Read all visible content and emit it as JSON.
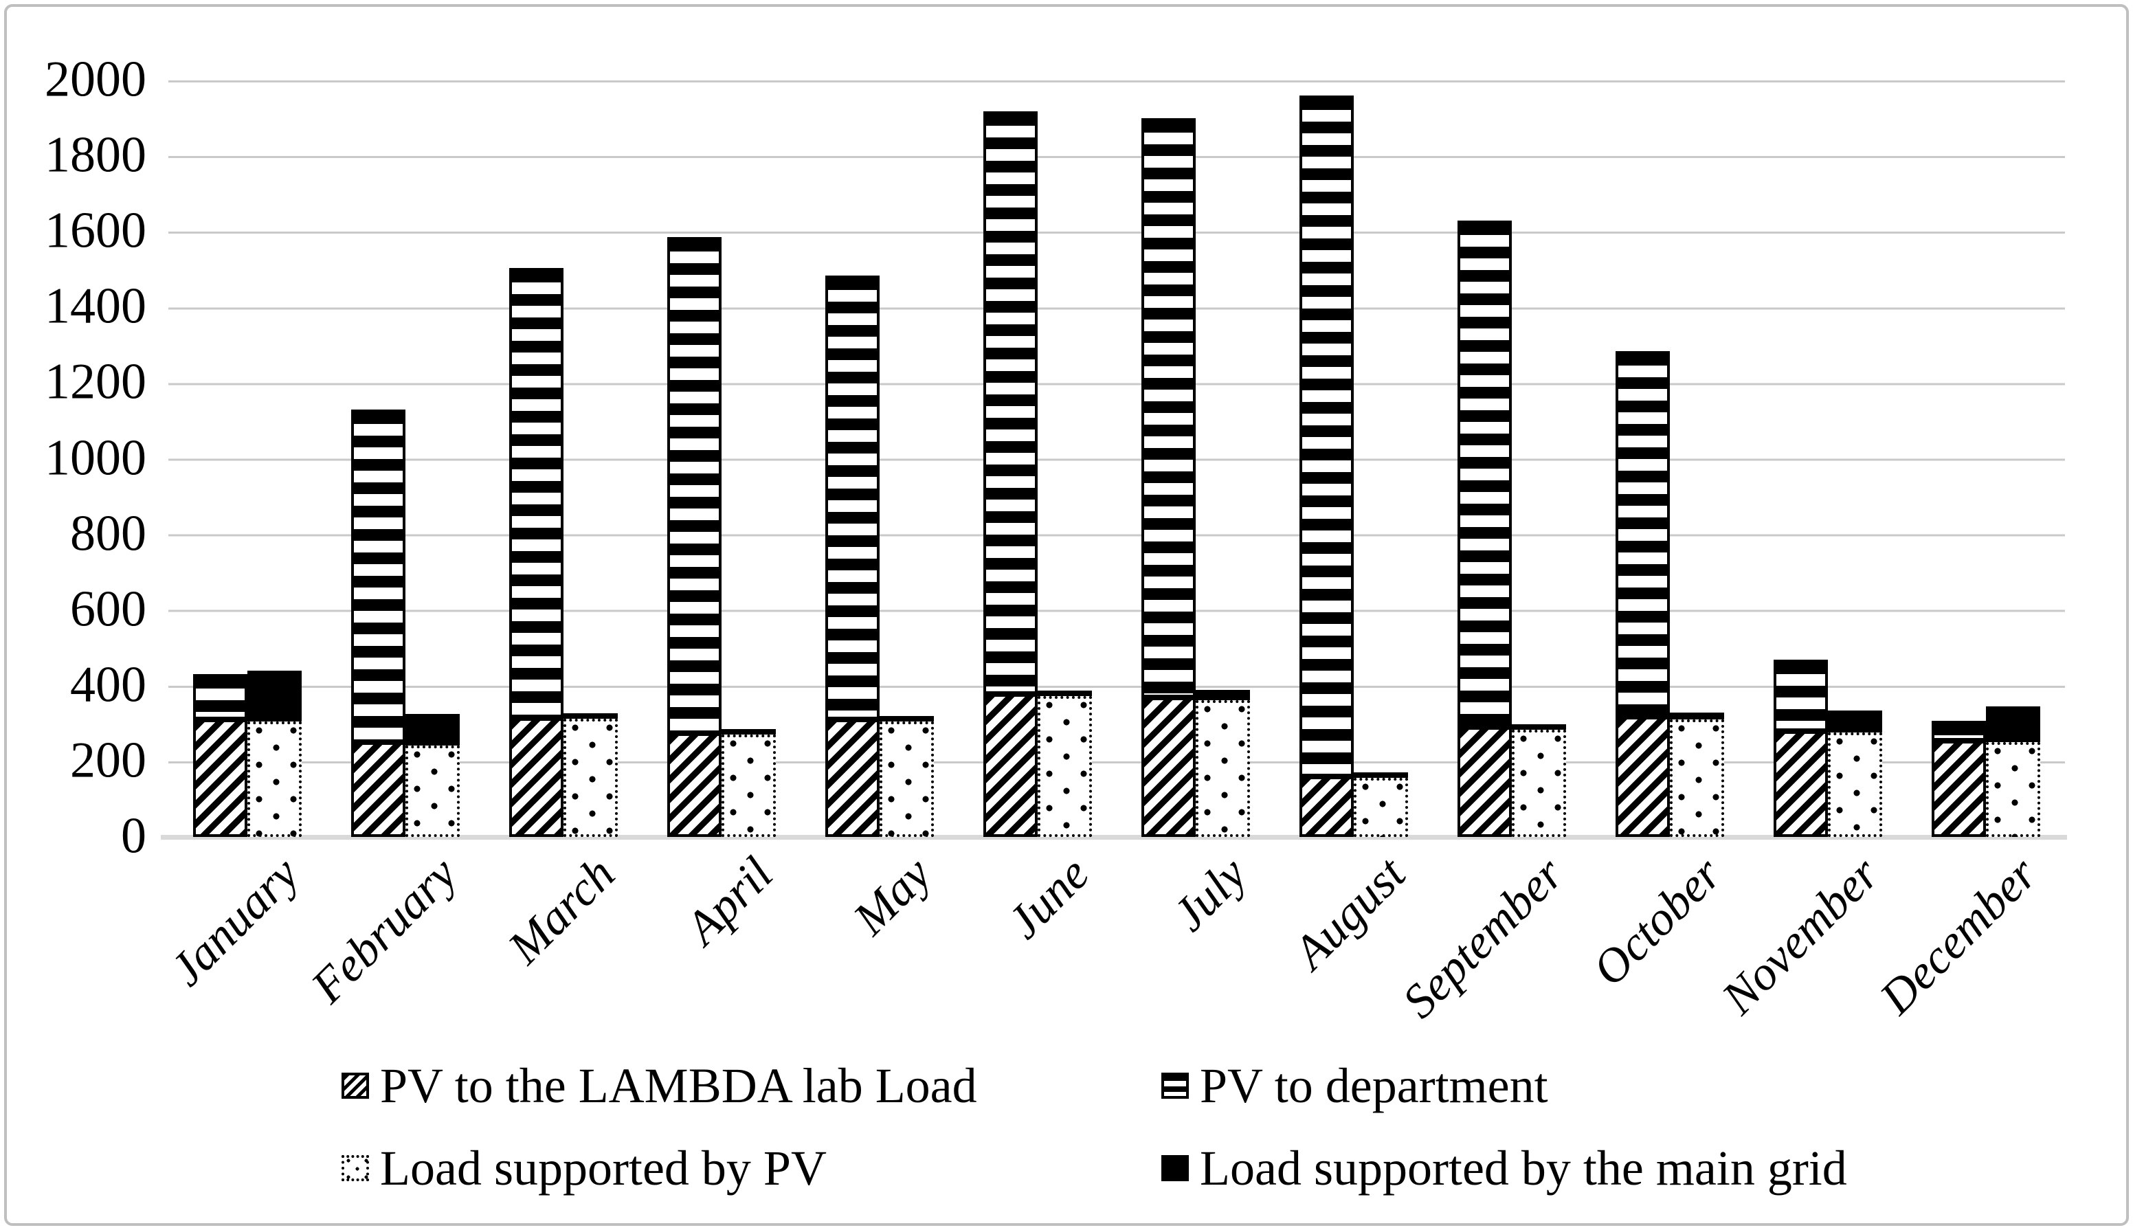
{
  "figure": {
    "background": "#ffffff",
    "border_color": "#bfbfbf",
    "gridline_color": "#c9c9c9",
    "axis_line_color": "#d9d9d9",
    "ink_color": "#000000"
  },
  "legend": {
    "position": "bottom",
    "items": [
      {
        "label": "PV to the LAMBDA lab Load",
        "pattern": "diagonal-hatch"
      },
      {
        "label": "PV to department",
        "pattern": "horizontal-stripes"
      },
      {
        "label": "Load supported by PV",
        "pattern": "dots"
      },
      {
        "label": "Load supported by the main grid",
        "pattern": "solid-black"
      }
    ]
  },
  "chart_data": {
    "type": "bar",
    "subtype": "two-stacked-bars-per-category",
    "title": "",
    "xlabel": "",
    "ylabel": "",
    "ylim": [
      0,
      2000
    ],
    "ytick": 200,
    "grid": "horizontal",
    "legend_position": "bottom",
    "categories": [
      "January",
      "February",
      "March",
      "April",
      "May",
      "June",
      "July",
      "August",
      "September",
      "October",
      "November",
      "December"
    ],
    "series": [
      {
        "name": "PV to the LAMBDA lab Load",
        "pattern": "diagonal-hatch",
        "stack": 0,
        "values": [
          310,
          250,
          315,
          275,
          310,
          378,
          368,
          160,
          290,
          318,
          280,
          255
        ]
      },
      {
        "name": "PV to department",
        "pattern": "horizontal-stripes",
        "stack": 0,
        "values": [
          120,
          880,
          1190,
          1310,
          1175,
          1540,
          1532,
          1800,
          1340,
          967,
          188,
          52
        ]
      },
      {
        "name": "Load supported by PV",
        "pattern": "dots",
        "stack": 1,
        "values": [
          305,
          242,
          313,
          270,
          305,
          372,
          362,
          157,
          283,
          310,
          276,
          251
        ]
      },
      {
        "name": "Load supported by the main grid",
        "pattern": "solid-black",
        "stack": 1,
        "values": [
          135,
          83,
          12,
          10,
          15,
          12,
          26,
          9,
          10,
          18,
          58,
          95
        ]
      }
    ],
    "stack_totals_note": {
      "stack0_totals": [
        430,
        1130,
        1505,
        1585,
        1485,
        1918,
        1900,
        1960,
        1630,
        1285,
        468,
        307
      ],
      "stack1_totals": [
        440,
        325,
        325,
        280,
        320,
        384,
        388,
        166,
        293,
        328,
        334,
        346
      ]
    }
  }
}
